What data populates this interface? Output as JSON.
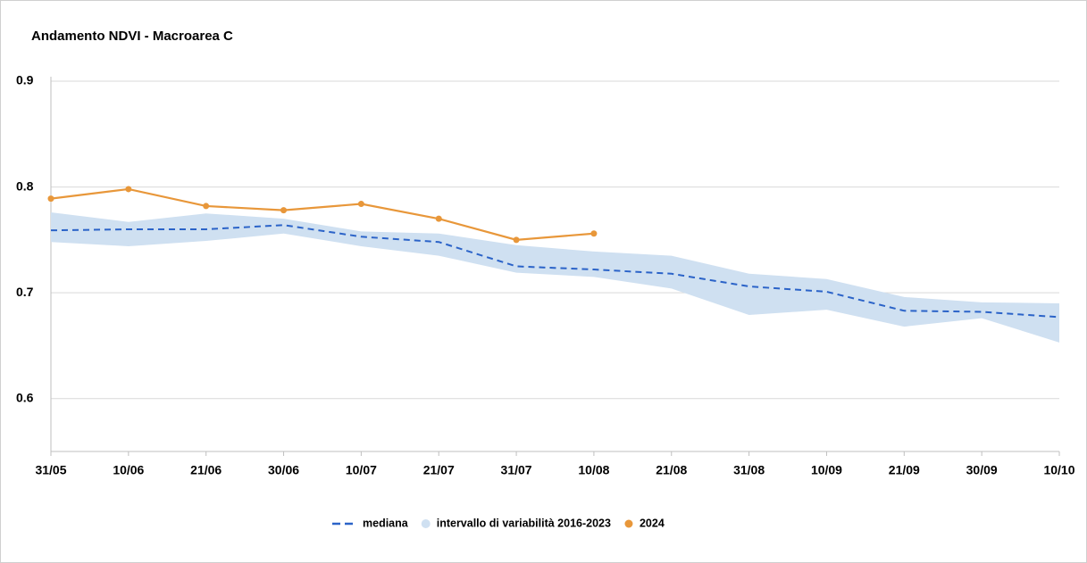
{
  "chart_data": {
    "type": "line",
    "title": "Andamento NDVI - Macroarea C",
    "categories": [
      "31/05",
      "10/06",
      "21/06",
      "30/06",
      "10/07",
      "21/07",
      "31/07",
      "10/08",
      "21/08",
      "31/08",
      "10/09",
      "21/09",
      "30/09",
      "10/10"
    ],
    "ylim": [
      0.55,
      0.9
    ],
    "yticks": [
      0.6,
      0.7,
      0.8,
      0.9
    ],
    "grid": true,
    "legend": "bottom",
    "series": [
      {
        "name": "mediana",
        "type": "line",
        "dashed": true,
        "color": "#2b63c8",
        "values": [
          0.759,
          0.76,
          0.76,
          0.764,
          0.753,
          0.748,
          0.725,
          0.722,
          0.718,
          0.706,
          0.701,
          0.683,
          0.682,
          0.677
        ]
      },
      {
        "name": "intervallo di variabilità 2016-2023",
        "type": "band",
        "color": "#cfe0f1",
        "upper": [
          0.776,
          0.767,
          0.775,
          0.77,
          0.758,
          0.756,
          0.745,
          0.739,
          0.735,
          0.718,
          0.713,
          0.696,
          0.691,
          0.69
        ],
        "lower": [
          0.748,
          0.744,
          0.749,
          0.756,
          0.744,
          0.735,
          0.719,
          0.715,
          0.704,
          0.679,
          0.684,
          0.668,
          0.676,
          0.653
        ]
      },
      {
        "name": "2024",
        "type": "line",
        "markers": true,
        "color": "#e8973a",
        "values": [
          0.789,
          0.798,
          0.782,
          0.778,
          0.784,
          0.77,
          0.75,
          0.756,
          null,
          null,
          null,
          null,
          null,
          null
        ]
      }
    ]
  }
}
